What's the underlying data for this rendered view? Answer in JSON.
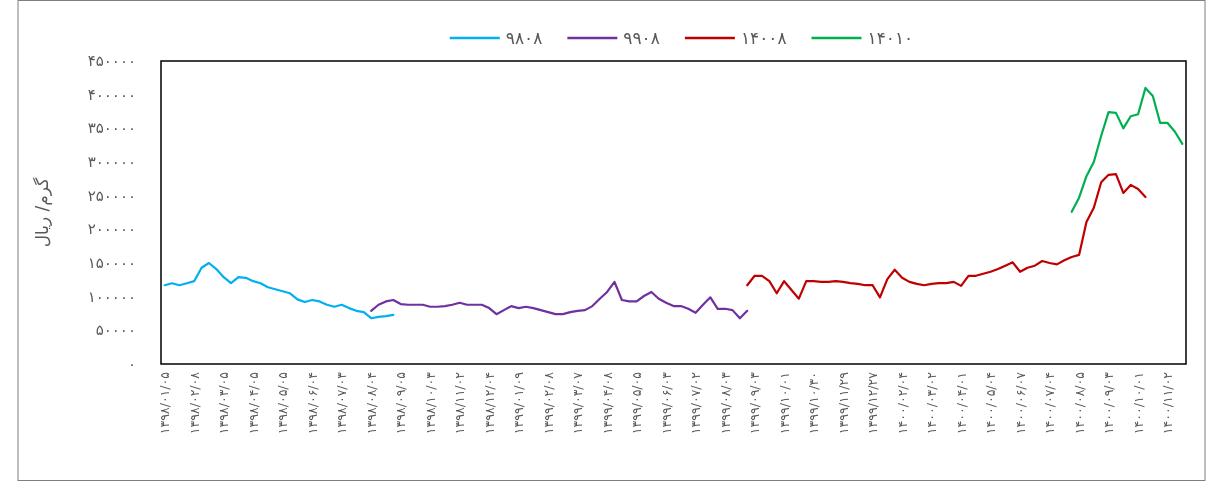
{
  "chart_data": {
    "type": "line",
    "ylabel": "گرم/ ریال",
    "categories": [
      "۱۳۹۸/۰۱/۰۵",
      null,
      null,
      null,
      "۱۳۹۸/۰۲/۰۸",
      null,
      null,
      null,
      "۱۳۹۸/۰۳/۰۵",
      null,
      null,
      null,
      "۱۳۹۸/۰۴/۰۵",
      null,
      null,
      null,
      "۱۳۹۸/۰۵/۰۵",
      null,
      null,
      null,
      "۱۳۹۸/۰۶/۰۴",
      null,
      null,
      null,
      "۱۳۹۸/۰۷/۰۳",
      null,
      null,
      null,
      "۱۳۹۸/۰۸/۰۴",
      null,
      null,
      null,
      "۱۳۹۸/۰۹/۰۵",
      null,
      null,
      null,
      "۱۳۹۸/۱۰/۰۳",
      null,
      null,
      null,
      "۱۳۹۸/۱۱/۰۲",
      null,
      null,
      null,
      "۱۳۹۸/۱۲/۰۴",
      null,
      null,
      null,
      "۱۳۹۹/۰۱/۰۹",
      null,
      null,
      null,
      "۱۳۹۹/۰۲/۰۸",
      null,
      null,
      null,
      "۱۳۹۹/۰۳/۰۷",
      null,
      null,
      null,
      "۱۳۹۹/۰۴/۰۸",
      null,
      null,
      null,
      "۱۳۹۹/۰۵/۰۵",
      null,
      null,
      null,
      "۱۳۹۹/۰۶/۰۳",
      null,
      null,
      null,
      "۱۳۹۹/۰۷/۰۲",
      null,
      null,
      null,
      "۱۳۹۹/۰۸/۰۳",
      null,
      null,
      null,
      "۱۳۹۹/۰۹/۰۳",
      null,
      null,
      null,
      "۱۳۹۹/۱۰/۰۱",
      null,
      null,
      null,
      "۱۳۹۹/۱۰/۳۰",
      null,
      null,
      null,
      "۱۳۹۹/۱۱/۲۹",
      null,
      null,
      null,
      "۱۳۹۹/۱۲/۲۷",
      null,
      null,
      null,
      "۱۴۰۰/۰۲/۰۴",
      null,
      null,
      null,
      "۱۴۰۰/۰۳/۰۲",
      null,
      null,
      null,
      "۱۴۰۰/۰۴/۰۱",
      null,
      null,
      null,
      "۱۴۰۰/۰۵/۰۴",
      null,
      null,
      null,
      "۱۴۰۰/۰۶/۰۷",
      null,
      null,
      null,
      "۱۴۰۰/۰۷/۰۴",
      null,
      null,
      null,
      "۱۴۰۰/۰۸/۰۵",
      null,
      null,
      null,
      "۱۴۰۰/۰۹/۰۳",
      null,
      null,
      null,
      "۱۴۰۰/۱۰/۰۱",
      null,
      null,
      null,
      "۱۴۰۰/۱۱/۰۲",
      null,
      null
    ],
    "series": [
      {
        "name": "۹۸۰۸",
        "color": "#00b0f0",
        "values": [
          117000,
          120000,
          117000,
          120000,
          123000,
          143000,
          150000,
          141000,
          129000,
          120000,
          129000,
          128000,
          123000,
          120000,
          114000,
          111000,
          108000,
          105000,
          96000,
          92000,
          95000,
          93000,
          88000,
          85000,
          88000,
          83000,
          79000,
          77000,
          68000,
          70000,
          71000,
          73000,
          null,
          null,
          null,
          null,
          null,
          null,
          null,
          null,
          null,
          null,
          null,
          null,
          null,
          null,
          null,
          null,
          null,
          null,
          null,
          null,
          null,
          null,
          null,
          null,
          null,
          null,
          null,
          null,
          null,
          null,
          null,
          null,
          null,
          null,
          null,
          null,
          null,
          null,
          null,
          null,
          null,
          null,
          null,
          null,
          null,
          null,
          null,
          null,
          null,
          null,
          null,
          null,
          null,
          null,
          null,
          null,
          null,
          null,
          null,
          null,
          null,
          null,
          null,
          null,
          null,
          null,
          null,
          null,
          null,
          null,
          null,
          null,
          null,
          null,
          null,
          null,
          null,
          null,
          null,
          null,
          null,
          null,
          null,
          null,
          null,
          null,
          null,
          null,
          null,
          null,
          null,
          null,
          null,
          null,
          null,
          null,
          null,
          null,
          null,
          null,
          null,
          null,
          null,
          null,
          null,
          null,
          null
        ]
      },
      {
        "name": "۹۹۰۸",
        "color": "#7030a0",
        "values": [
          null,
          null,
          null,
          null,
          null,
          null,
          null,
          null,
          null,
          null,
          null,
          null,
          null,
          null,
          null,
          null,
          null,
          null,
          null,
          null,
          null,
          null,
          null,
          null,
          null,
          null,
          null,
          null,
          79000,
          88000,
          93000,
          95000,
          89000,
          88000,
          88000,
          88000,
          85000,
          85000,
          86000,
          88000,
          91000,
          88000,
          88000,
          88000,
          83000,
          74000,
          80000,
          86000,
          83000,
          85000,
          83000,
          80000,
          77000,
          74000,
          74000,
          77000,
          79000,
          80000,
          86000,
          97000,
          107000,
          122000,
          95000,
          93000,
          93000,
          101000,
          107000,
          97000,
          91000,
          86000,
          86000,
          82000,
          76000,
          88000,
          99000,
          82000,
          82000,
          80000,
          68000,
          79000,
          null,
          null,
          null,
          null,
          null,
          null,
          null,
          null,
          null,
          null,
          null,
          null,
          null,
          null,
          null,
          null,
          null,
          null,
          null,
          null,
          null,
          null,
          null,
          null,
          null,
          null,
          null,
          null,
          null,
          null,
          null,
          null,
          null,
          null,
          null,
          null,
          null,
          null,
          null,
          null,
          null,
          null,
          null,
          null,
          null,
          null,
          null,
          null,
          null,
          null,
          null,
          null,
          null,
          null,
          null,
          null,
          null,
          null,
          null
        ]
      },
      {
        "name": "۱۴۰۰۸",
        "color": "#c00000",
        "values": [
          null,
          null,
          null,
          null,
          null,
          null,
          null,
          null,
          null,
          null,
          null,
          null,
          null,
          null,
          null,
          null,
          null,
          null,
          null,
          null,
          null,
          null,
          null,
          null,
          null,
          null,
          null,
          null,
          null,
          null,
          null,
          null,
          null,
          null,
          null,
          null,
          null,
          null,
          null,
          null,
          null,
          null,
          null,
          null,
          null,
          null,
          null,
          null,
          null,
          null,
          null,
          null,
          null,
          null,
          null,
          null,
          null,
          null,
          null,
          null,
          null,
          null,
          null,
          null,
          null,
          null,
          null,
          null,
          null,
          null,
          null,
          null,
          null,
          null,
          null,
          null,
          null,
          null,
          null,
          117000,
          131000,
          131000,
          123000,
          105000,
          123000,
          110000,
          97000,
          123000,
          123000,
          122000,
          122000,
          123000,
          122000,
          120000,
          119000,
          117000,
          117000,
          99000,
          126000,
          140000,
          128000,
          122000,
          119000,
          117000,
          119000,
          120000,
          120000,
          122000,
          116000,
          131000,
          131000,
          134000,
          137000,
          141000,
          146000,
          151000,
          137000,
          143000,
          146000,
          153000,
          150000,
          148000,
          154000,
          159000,
          162000,
          211000,
          232000,
          270000,
          281000,
          282000,
          254000,
          266000,
          260000,
          248000,
          null,
          null,
          null,
          null,
          null
        ]
      },
      {
        "name": "۱۴۰۱۰",
        "color": "#00b050",
        "values": [
          null,
          null,
          null,
          null,
          null,
          null,
          null,
          null,
          null,
          null,
          null,
          null,
          null,
          null,
          null,
          null,
          null,
          null,
          null,
          null,
          null,
          null,
          null,
          null,
          null,
          null,
          null,
          null,
          null,
          null,
          null,
          null,
          null,
          null,
          null,
          null,
          null,
          null,
          null,
          null,
          null,
          null,
          null,
          null,
          null,
          null,
          null,
          null,
          null,
          null,
          null,
          null,
          null,
          null,
          null,
          null,
          null,
          null,
          null,
          null,
          null,
          null,
          null,
          null,
          null,
          null,
          null,
          null,
          null,
          null,
          null,
          null,
          null,
          null,
          null,
          null,
          null,
          null,
          null,
          null,
          null,
          null,
          null,
          null,
          null,
          null,
          null,
          null,
          null,
          null,
          null,
          null,
          null,
          null,
          null,
          null,
          null,
          null,
          null,
          null,
          null,
          null,
          null,
          null,
          null,
          null,
          null,
          null,
          null,
          null,
          null,
          null,
          null,
          null,
          null,
          null,
          null,
          null,
          null,
          null,
          null,
          null,
          null,
          226000,
          247000,
          279000,
          300000,
          339000,
          374000,
          373000,
          350000,
          368000,
          371000,
          410000,
          398000,
          358000,
          358000,
          345000,
          327000
        ]
      }
    ],
    "ylim": [
      0,
      450000
    ],
    "yticks": [
      {
        "value": 0,
        "label": "۰"
      },
      {
        "value": 50000,
        "label": "۵۰۰۰۰"
      },
      {
        "value": 100000,
        "label": "۱۰۰۰۰۰"
      },
      {
        "value": 150000,
        "label": "۱۵۰۰۰۰"
      },
      {
        "value": 200000,
        "label": "۲۰۰۰۰۰"
      },
      {
        "value": 250000,
        "label": "۲۵۰۰۰۰"
      },
      {
        "value": 300000,
        "label": "۳۰۰۰۰۰"
      },
      {
        "value": 350000,
        "label": "۳۵۰۰۰۰"
      },
      {
        "value": 400000,
        "label": "۴۰۰۰۰۰"
      },
      {
        "value": 450000,
        "label": "۴۵۰۰۰۰"
      }
    ],
    "grid": false,
    "legend": "top",
    "marker": "none",
    "line_style": "solid"
  }
}
